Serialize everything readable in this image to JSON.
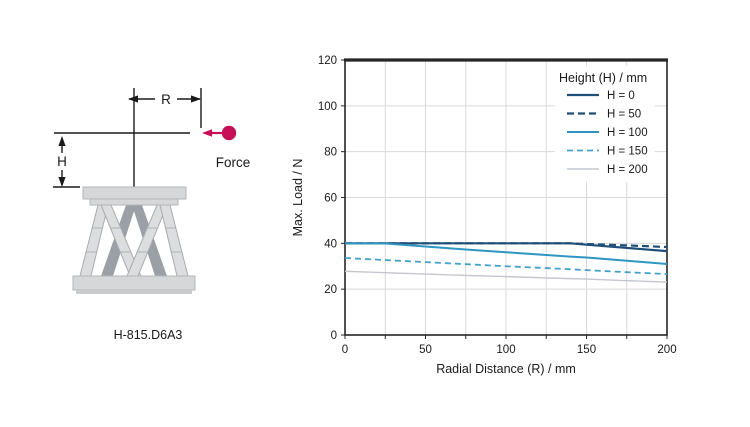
{
  "diagram": {
    "dimension_r_label": "R",
    "dimension_h_label": "H",
    "force_label": "Force",
    "model_label": "H-815.D6A3",
    "force_color": "#c50f56",
    "plate_color": "#d6d7d9",
    "plate_border_color": "#b3b5b8",
    "strut_light_color": "#dcdddf",
    "strut_light_border_color": "#a9abae",
    "strut_dark_color": "#9ba0a6",
    "line_color": "#1a1a1a"
  },
  "chart_data": {
    "type": "line",
    "title": "",
    "xlabel": "Radial Distance (R) / mm",
    "ylabel": "Max. Load / N",
    "xlim": [
      0,
      200
    ],
    "ylim": [
      0,
      120
    ],
    "x_major_ticks": [
      0,
      50,
      100,
      150,
      200
    ],
    "x_grid_step": 25,
    "y_tick_step": 20,
    "grid": true,
    "legend_position": "top-right-inside",
    "legend_title": "Height (H) / mm",
    "colors": {
      "grid": "#d9d9d9",
      "axis": "#262626",
      "text": "#1a1a1a"
    },
    "x": [
      0,
      25,
      50,
      75,
      100,
      125,
      140,
      150,
      175,
      200
    ],
    "series": [
      {
        "name": "H = 0",
        "color": "#1f4e79",
        "dash": null,
        "width": 2.2,
        "values": [
          40,
          40,
          40,
          40,
          40,
          40,
          40,
          39.4,
          38.0,
          36.6
        ]
      },
      {
        "name": "H = 50",
        "color": "#1f4e79",
        "dash": "7 4",
        "width": 2.2,
        "values": [
          40,
          40,
          40,
          40,
          40,
          40,
          40,
          39.7,
          39.1,
          38.4
        ]
      },
      {
        "name": "H = 100",
        "color": "#2e96c1",
        "dash": null,
        "width": 2.0,
        "values": [
          40,
          39.9,
          38.6,
          37.3,
          36.1,
          34.9,
          34.2,
          33.8,
          32.4,
          31.0
        ]
      },
      {
        "name": "H = 150",
        "color": "#44a1c8",
        "dash": "6 4",
        "width": 1.8,
        "values": [
          33.6,
          32.7,
          31.8,
          30.9,
          30.0,
          29.2,
          28.7,
          28.3,
          27.4,
          26.6
        ]
      },
      {
        "name": "H = 200",
        "color": "#c3c7cd",
        "dash": null,
        "width": 1.4,
        "values": [
          27.8,
          27.2,
          26.6,
          26.0,
          25.5,
          24.9,
          24.6,
          24.4,
          23.7,
          23.1
        ]
      }
    ]
  }
}
